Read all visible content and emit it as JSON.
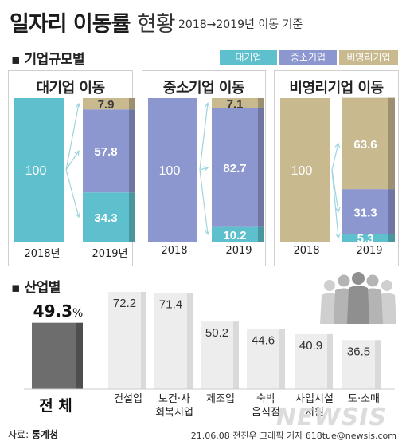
{
  "header": {
    "title": "일자리 이동률",
    "title_sub": "현황",
    "period": "2018→2019년 이동 기준"
  },
  "colors": {
    "large": "#5ec0cc",
    "sme": "#8d97cf",
    "nonprofit": "#c8b98f",
    "industry_bar": "#ededed",
    "total_bar": "#6d6d6d",
    "frame": "#c8c8c8"
  },
  "icons": [
    "people-group-icon"
  ],
  "chart_data": [
    {
      "type": "bar",
      "section": "기업규모별",
      "legend": [
        "대기업",
        "중소기업",
        "비영리기업"
      ],
      "panels": [
        {
          "title": "대기업 이동",
          "categories": [
            "2018년",
            "2019년"
          ],
          "series": [
            {
              "name": "대기업",
              "values": [
                100,
                34.3
              ]
            },
            {
              "name": "중소기업",
              "values": [
                0,
                57.8
              ]
            },
            {
              "name": "비영리기업",
              "values": [
                0,
                7.9
              ]
            }
          ],
          "labels": {
            "before": "100",
            "after": [
              "34.3",
              "57.8",
              "7.9"
            ]
          }
        },
        {
          "title": "중소기업 이동",
          "categories": [
            "2018",
            "2019"
          ],
          "series": [
            {
              "name": "대기업",
              "values": [
                0,
                10.2
              ]
            },
            {
              "name": "중소기업",
              "values": [
                100,
                82.7
              ]
            },
            {
              "name": "비영리기업",
              "values": [
                0,
                7.1
              ]
            }
          ],
          "labels": {
            "before": "100",
            "after": [
              "10.2",
              "82.7",
              "7.1"
            ]
          }
        },
        {
          "title": "비영리기업 이동",
          "categories": [
            "2018",
            "2019"
          ],
          "series": [
            {
              "name": "대기업",
              "values": [
                0,
                5.3
              ]
            },
            {
              "name": "중소기업",
              "values": [
                0,
                31.3
              ]
            },
            {
              "name": "비영리기업",
              "values": [
                100,
                63.6
              ]
            }
          ],
          "labels": {
            "before": "100",
            "after": [
              "5.3",
              "31.3",
              "63.6"
            ]
          }
        }
      ],
      "ylim": [
        0,
        100
      ]
    },
    {
      "type": "bar",
      "section": "산업별",
      "categories": [
        "전 체",
        "건설업",
        "보건·사\n회복지업",
        "제조업",
        "숙박\n음식점",
        "사업시설\n지원",
        "도·소매"
      ],
      "values": [
        49.3,
        72.2,
        71.4,
        50.2,
        44.6,
        40.9,
        36.5
      ],
      "value_labels": [
        "49.3",
        "72.2",
        "71.4",
        "50.2",
        "44.6",
        "40.9",
        "36.5"
      ],
      "total_unit": "%",
      "ylim": [
        0,
        100
      ]
    }
  ],
  "footer": {
    "source_label": "자료:",
    "source": "통계청",
    "credit": "21.06.08 전진우 그래픽 기자 618tue@newsis.com",
    "watermark": "NEWSIS"
  }
}
